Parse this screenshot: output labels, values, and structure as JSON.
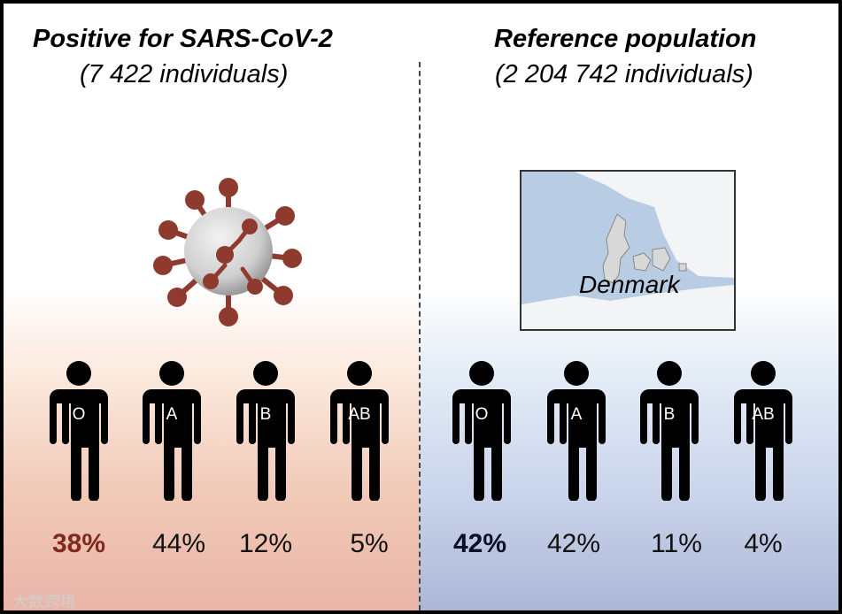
{
  "left_panel": {
    "title": "Positive for SARS-CoV-2",
    "subtitle": "(7 422 individuals)",
    "groups": [
      {
        "label": "O",
        "percent": "38%"
      },
      {
        "label": "A",
        "percent": "44%"
      },
      {
        "label": "B",
        "percent": "12%"
      },
      {
        "label": "AB",
        "percent": "5%"
      }
    ],
    "highlight_color": "#7e2a1e"
  },
  "right_panel": {
    "title": "Reference population",
    "subtitle": "(2 204 742 individuals)",
    "map_label": "Denmark",
    "groups": [
      {
        "label": "O",
        "percent": "42%"
      },
      {
        "label": "A",
        "percent": "42%"
      },
      {
        "label": "B",
        "percent": "11%"
      },
      {
        "label": "AB",
        "percent": "4%"
      }
    ],
    "highlight_color": "#0a0f2a"
  },
  "icons": [
    "virus-icon",
    "person-icon",
    "map-image"
  ],
  "watermark": "大数跨境"
}
